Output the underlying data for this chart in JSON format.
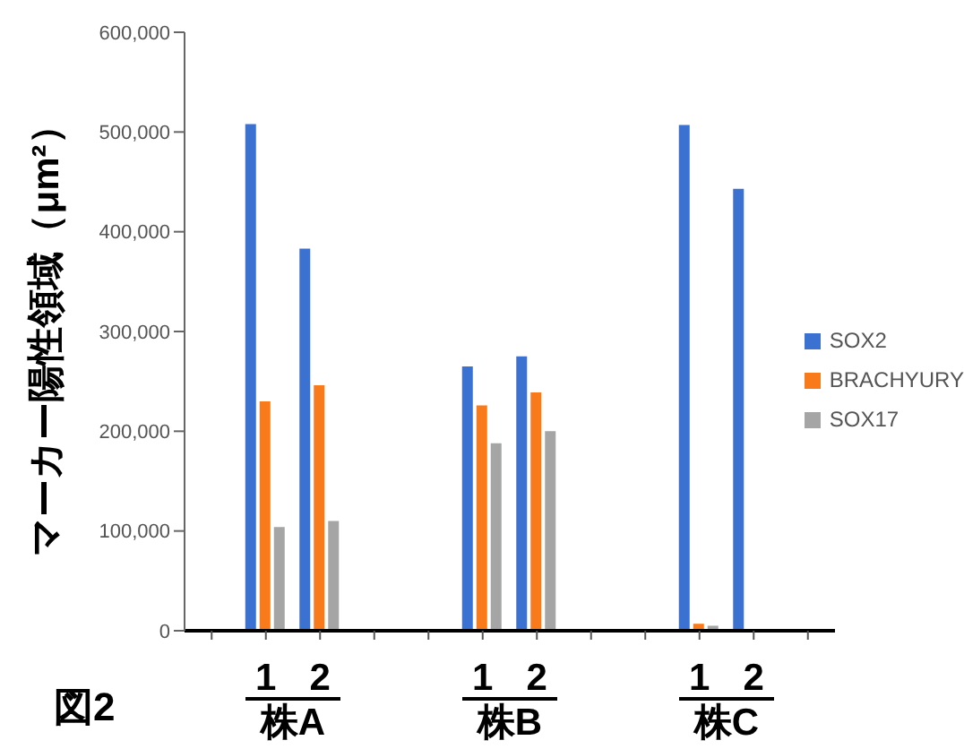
{
  "chart_data": {
    "type": "bar",
    "categories": [
      null,
      "1",
      "2",
      null,
      null,
      "1",
      "2",
      null,
      null,
      "1",
      "2",
      null
    ],
    "series": [
      {
        "name": "SOX2",
        "color": "#3b72d1",
        "values": [
          null,
          508000,
          383000,
          null,
          null,
          265000,
          275000,
          null,
          null,
          507000,
          443000,
          null
        ]
      },
      {
        "name": "BRACHYURY",
        "color": "#f97a1a",
        "values": [
          null,
          230000,
          246000,
          null,
          null,
          226000,
          239000,
          null,
          null,
          7000,
          null,
          null
        ]
      },
      {
        "name": "SOX17",
        "color": "#a5a5a5",
        "values": [
          null,
          104000,
          110000,
          null,
          null,
          188000,
          200000,
          null,
          null,
          5000,
          null,
          null
        ]
      }
    ],
    "ylabel": "マーカー陽性領域（μm²）",
    "ylim": [
      0,
      600000
    ],
    "yticks": [
      {
        "value": 0,
        "label": "0"
      },
      {
        "value": 100000,
        "label": "100,000"
      },
      {
        "value": 200000,
        "label": "200,000"
      },
      {
        "value": 300000,
        "label": "300,000"
      },
      {
        "value": 400000,
        "label": "400,000"
      },
      {
        "value": 500000,
        "label": "500,000"
      },
      {
        "value": 600000,
        "label": "600,000"
      }
    ],
    "annotations": [
      "株A",
      "株B",
      "株C",
      "図2"
    ],
    "legend": "right",
    "grid": false
  }
}
